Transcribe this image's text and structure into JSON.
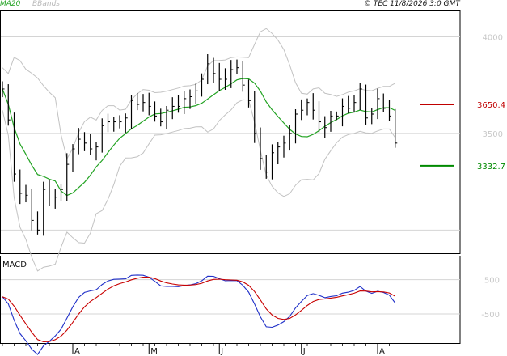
{
  "header": {
    "ma_label": "MA20",
    "bb_label": "BBands",
    "copyright": "© TEC 11/8/2026 3:0 GMT"
  },
  "colors": {
    "ma": "#23a323",
    "bbands": "#c2c2c2",
    "price": "#000000",
    "resistance": "#c00000",
    "support": "#008a00",
    "macd": "#1f2fc8",
    "signal": "#c80000",
    "grid": "#d4d4d4"
  },
  "chart_data": {
    "type": "line",
    "price_panel": {
      "ylim": [
        2880,
        4140
      ],
      "y_ticks": [
        {
          "value": 4000,
          "label": "4000"
        },
        {
          "value": 3500,
          "label": "3500"
        }
      ],
      "close": [
        3730,
        3570,
        3290,
        3190,
        3180,
        3050,
        3000,
        3210,
        3150,
        3170,
        3210,
        3340,
        3420,
        3470,
        3450,
        3420,
        3430,
        3540,
        3560,
        3560,
        3560,
        3580,
        3670,
        3650,
        3660,
        3640,
        3590,
        3560,
        3620,
        3640,
        3640,
        3680,
        3690,
        3720,
        3780,
        3860,
        3810,
        3780,
        3780,
        3830,
        3840,
        3750,
        3670,
        3500,
        3370,
        3300,
        3400,
        3430,
        3450,
        3500,
        3600,
        3620,
        3660,
        3620,
        3560,
        3530,
        3590,
        3590,
        3640,
        3630,
        3660,
        3730,
        3580,
        3600,
        3680,
        3630,
        3590,
        3450
      ],
      "resistance": {
        "value": 3650.4,
        "label": "3650.4"
      },
      "support": {
        "value": 3332.7,
        "label": "3332.7"
      },
      "ma20_label": "MA20",
      "bbands_label": "BBands"
    },
    "macd_panel": {
      "ylim": [
        -1350,
        1200
      ],
      "y_ticks": [
        {
          "value": 500,
          "label": "500"
        },
        {
          "value": -500,
          "label": "-500"
        }
      ],
      "label": "MACD"
    },
    "x_labels": [
      {
        "index": 12,
        "label": "A"
      },
      {
        "index": 25,
        "label": "M"
      },
      {
        "index": 37,
        "label": "J"
      },
      {
        "index": 51,
        "label": "J"
      },
      {
        "index": 64,
        "label": "A"
      }
    ]
  }
}
